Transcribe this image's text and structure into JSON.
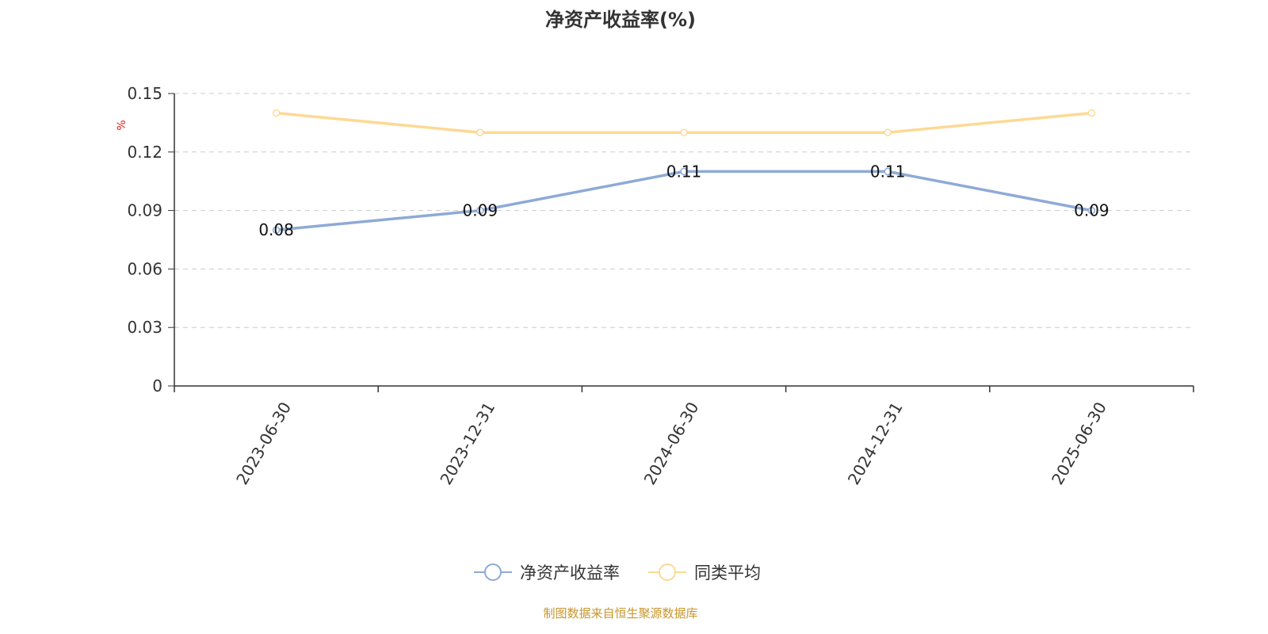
{
  "chart_data": {
    "type": "line",
    "title": "净资产收益率(%)",
    "ylabel": "%",
    "xlabel": "",
    "categories": [
      "2023-06-30",
      "2023-12-31",
      "2024-06-30",
      "2024-12-31",
      "2025-06-30"
    ],
    "ylim": [
      0,
      0.15
    ],
    "yticks": [
      0,
      0.03,
      0.06,
      0.09,
      0.12,
      0.15
    ],
    "ytick_labels": [
      "0",
      "0.03",
      "0.06",
      "0.09",
      "0.12",
      "0.15"
    ],
    "grid": "horizontal dashed",
    "legend_position": "bottom-center",
    "series": [
      {
        "name": "净资产收益率",
        "values": [
          0.08,
          0.09,
          0.11,
          0.11,
          0.09
        ],
        "data_labels": [
          "0.08",
          "0.09",
          "0.11",
          "0.11",
          "0.09"
        ],
        "color": "#8eaad6"
      },
      {
        "name": "同类平均",
        "values": [
          0.14,
          0.13,
          0.13,
          0.13,
          0.14
        ],
        "color": "#fdd995"
      }
    ],
    "source_note": "制图数据来自恒生聚源数据库",
    "colors": {
      "axis": "#333333",
      "grid": "#cccccc",
      "unit": "#e02020",
      "source": "#c9952c"
    }
  }
}
